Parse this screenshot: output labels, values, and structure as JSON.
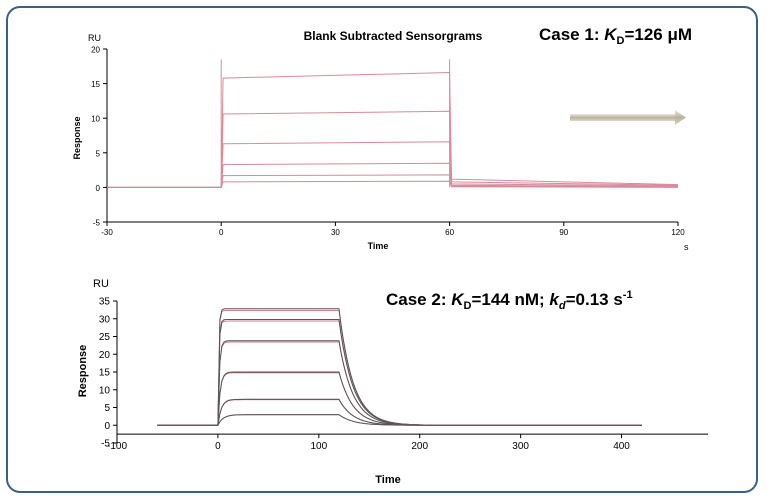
{
  "chart_data": [
    {
      "type": "line",
      "title": "Blank Subtracted Sensorgrams",
      "annotation": {
        "pre": "Case 1: ",
        "K": "K",
        "sub": "D",
        "post": "=126 μM"
      },
      "xlabel": "Time",
      "x_unit": "s",
      "ylabel": "Response",
      "y_unit": "RU",
      "xlim": [
        -30,
        120
      ],
      "ylim": [
        -5,
        20
      ],
      "xticks": [
        -30,
        0,
        30,
        60,
        90,
        120
      ],
      "yticks": [
        -5,
        0,
        5,
        10,
        15,
        20
      ],
      "injection_start": 0,
      "injection_end": 60,
      "series_color": "#d88a9a",
      "series": [
        {
          "values": [
            {
              "x": -30,
              "y": 0
            },
            {
              "x": 0,
              "y": 0
            },
            {
              "x": 0.5,
              "y": 15.8
            },
            {
              "x": 60,
              "y": 16.6
            },
            {
              "x": 60.5,
              "y": 1.2
            },
            {
              "x": 120,
              "y": 0.4
            }
          ]
        },
        {
          "values": [
            {
              "x": -30,
              "y": 0
            },
            {
              "x": 0,
              "y": 0
            },
            {
              "x": 0.5,
              "y": 10.6
            },
            {
              "x": 60,
              "y": 11.0
            },
            {
              "x": 60.5,
              "y": 0.8
            },
            {
              "x": 120,
              "y": 0.3
            }
          ]
        },
        {
          "values": [
            {
              "x": -30,
              "y": 0
            },
            {
              "x": 0,
              "y": 0
            },
            {
              "x": 0.5,
              "y": 6.3
            },
            {
              "x": 60,
              "y": 6.6
            },
            {
              "x": 60.5,
              "y": 0.5
            },
            {
              "x": 120,
              "y": 0.2
            }
          ]
        },
        {
          "values": [
            {
              "x": -30,
              "y": 0
            },
            {
              "x": 0,
              "y": 0
            },
            {
              "x": 0.5,
              "y": 3.3
            },
            {
              "x": 60,
              "y": 3.5
            },
            {
              "x": 60.5,
              "y": 0.3
            },
            {
              "x": 120,
              "y": 0.1
            }
          ]
        },
        {
          "values": [
            {
              "x": -30,
              "y": 0
            },
            {
              "x": 0,
              "y": 0
            },
            {
              "x": 0.5,
              "y": 1.7
            },
            {
              "x": 60,
              "y": 1.8
            },
            {
              "x": 60.5,
              "y": 0.2
            },
            {
              "x": 120,
              "y": 0.05
            }
          ]
        },
        {
          "values": [
            {
              "x": -30,
              "y": 0
            },
            {
              "x": 0,
              "y": 0
            },
            {
              "x": 0.5,
              "y": 0.8
            },
            {
              "x": 60,
              "y": 0.9
            },
            {
              "x": 60.5,
              "y": 0.1
            },
            {
              "x": 120,
              "y": 0
            }
          ]
        }
      ],
      "spikes": [
        {
          "x": 0,
          "y": 18.5
        },
        {
          "x": 60,
          "y": 18.5
        }
      ],
      "legend": "none",
      "grid": false
    },
    {
      "type": "line",
      "title": "",
      "annotation": {
        "pre": "Case 2: ",
        "K": "K",
        "sub": "D",
        "mid": "=144 nM; ",
        "k": "k",
        "ksub": "d",
        "post": "=0.13 s",
        "sup": "-1"
      },
      "xlabel": "Time",
      "ylabel": "Response",
      "y_unit": "RU",
      "xlim": [
        -100,
        450
      ],
      "ylim": [
        -5,
        35
      ],
      "xticks": [
        -100,
        0,
        100,
        200,
        300,
        400
      ],
      "yticks": [
        -5,
        0,
        5,
        10,
        15,
        20,
        25,
        30,
        35
      ],
      "injection_start": 0,
      "injection_end": 120,
      "kd": 0.13,
      "series_color": "#555555",
      "fit_color": "#c05a6a",
      "x_start": -60,
      "x_end": 420,
      "series": [
        {
          "plateau": 32.8,
          "ka": 1.2
        },
        {
          "plateau": 29.8,
          "ka": 1.0
        },
        {
          "plateau": 23.8,
          "ka": 0.7
        },
        {
          "plateau": 15.0,
          "ka": 0.45
        },
        {
          "plateau": 7.3,
          "ka": 0.3
        },
        {
          "plateau": 3.0,
          "ka": 0.2
        }
      ],
      "legend": "none",
      "grid": false
    }
  ]
}
